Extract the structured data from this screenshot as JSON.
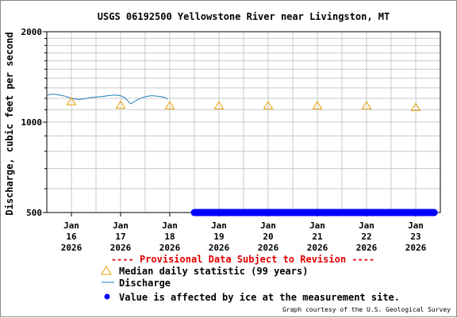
{
  "chart_data": {
    "type": "line",
    "title": "USGS 06192500 Yellowstone River near Livingston, MT",
    "ylabel": "Discharge, cubic feet per second",
    "xlabel": "",
    "y_scale": "log",
    "ylim": [
      500,
      2000
    ],
    "y_ticks": [
      "500",
      "1000",
      "2000"
    ],
    "x_ticks": [
      {
        "month": "Jan",
        "day": "16",
        "year": "2026"
      },
      {
        "month": "Jan",
        "day": "17",
        "year": "2026"
      },
      {
        "month": "Jan",
        "day": "18",
        "year": "2026"
      },
      {
        "month": "Jan",
        "day": "19",
        "year": "2026"
      },
      {
        "month": "Jan",
        "day": "20",
        "year": "2026"
      },
      {
        "month": "Jan",
        "day": "21",
        "year": "2026"
      },
      {
        "month": "Jan",
        "day": "22",
        "year": "2026"
      },
      {
        "month": "Jan",
        "day": "23",
        "year": "2026"
      }
    ],
    "xlim_days": [
      "2026-01-15T12:00",
      "2026-01-23T12:00"
    ],
    "series": [
      {
        "name": "Discharge",
        "color": "#1f7fbf",
        "points": [
          [
            "2026-01-15T12:00",
            1230
          ],
          [
            "2026-01-15T15:00",
            1240
          ],
          [
            "2026-01-15T18:00",
            1232
          ],
          [
            "2026-01-15T21:00",
            1220
          ],
          [
            "2026-01-16T00:00",
            1200
          ],
          [
            "2026-01-16T03:00",
            1190
          ],
          [
            "2026-01-16T06:00",
            1195
          ],
          [
            "2026-01-16T09:00",
            1205
          ],
          [
            "2026-01-16T12:00",
            1212
          ],
          [
            "2026-01-16T15:00",
            1218
          ],
          [
            "2026-01-16T18:00",
            1225
          ],
          [
            "2026-01-16T21:00",
            1232
          ],
          [
            "2026-01-17T00:00",
            1225
          ],
          [
            "2026-01-17T02:00",
            1205
          ],
          [
            "2026-01-17T04:00",
            1170
          ],
          [
            "2026-01-17T05:00",
            1150
          ],
          [
            "2026-01-17T07:00",
            1175
          ],
          [
            "2026-01-17T09:00",
            1195
          ],
          [
            "2026-01-17T12:00",
            1215
          ],
          [
            "2026-01-17T15:00",
            1225
          ],
          [
            "2026-01-17T18:00",
            1220
          ],
          [
            "2026-01-17T21:00",
            1212
          ],
          [
            "2026-01-17T23:00",
            1192
          ]
        ]
      },
      {
        "name": "Median daily statistic (99 years)",
        "color": "#e8a000",
        "marker": "triangle",
        "points": [
          [
            "2026-01-16T00:00",
            1170
          ],
          [
            "2026-01-17T00:00",
            1140
          ],
          [
            "2026-01-18T00:00",
            1135
          ],
          [
            "2026-01-19T00:00",
            1135
          ],
          [
            "2026-01-20T00:00",
            1135
          ],
          [
            "2026-01-21T00:00",
            1135
          ],
          [
            "2026-01-22T00:00",
            1135
          ],
          [
            "2026-01-23T00:00",
            1120
          ]
        ]
      },
      {
        "name": "Value is affected by ice at the measurement site.",
        "color": "#0000ff",
        "marker": "dot",
        "range": [
          "2026-01-18T12:00",
          "2026-01-23T09:00"
        ],
        "y": 500
      }
    ],
    "provisional_note": "---- Provisional Data Subject to Revision ----",
    "credit": "Graph courtesy of the U.S. Geological Survey",
    "grid": true,
    "legend_position": "bottom"
  }
}
